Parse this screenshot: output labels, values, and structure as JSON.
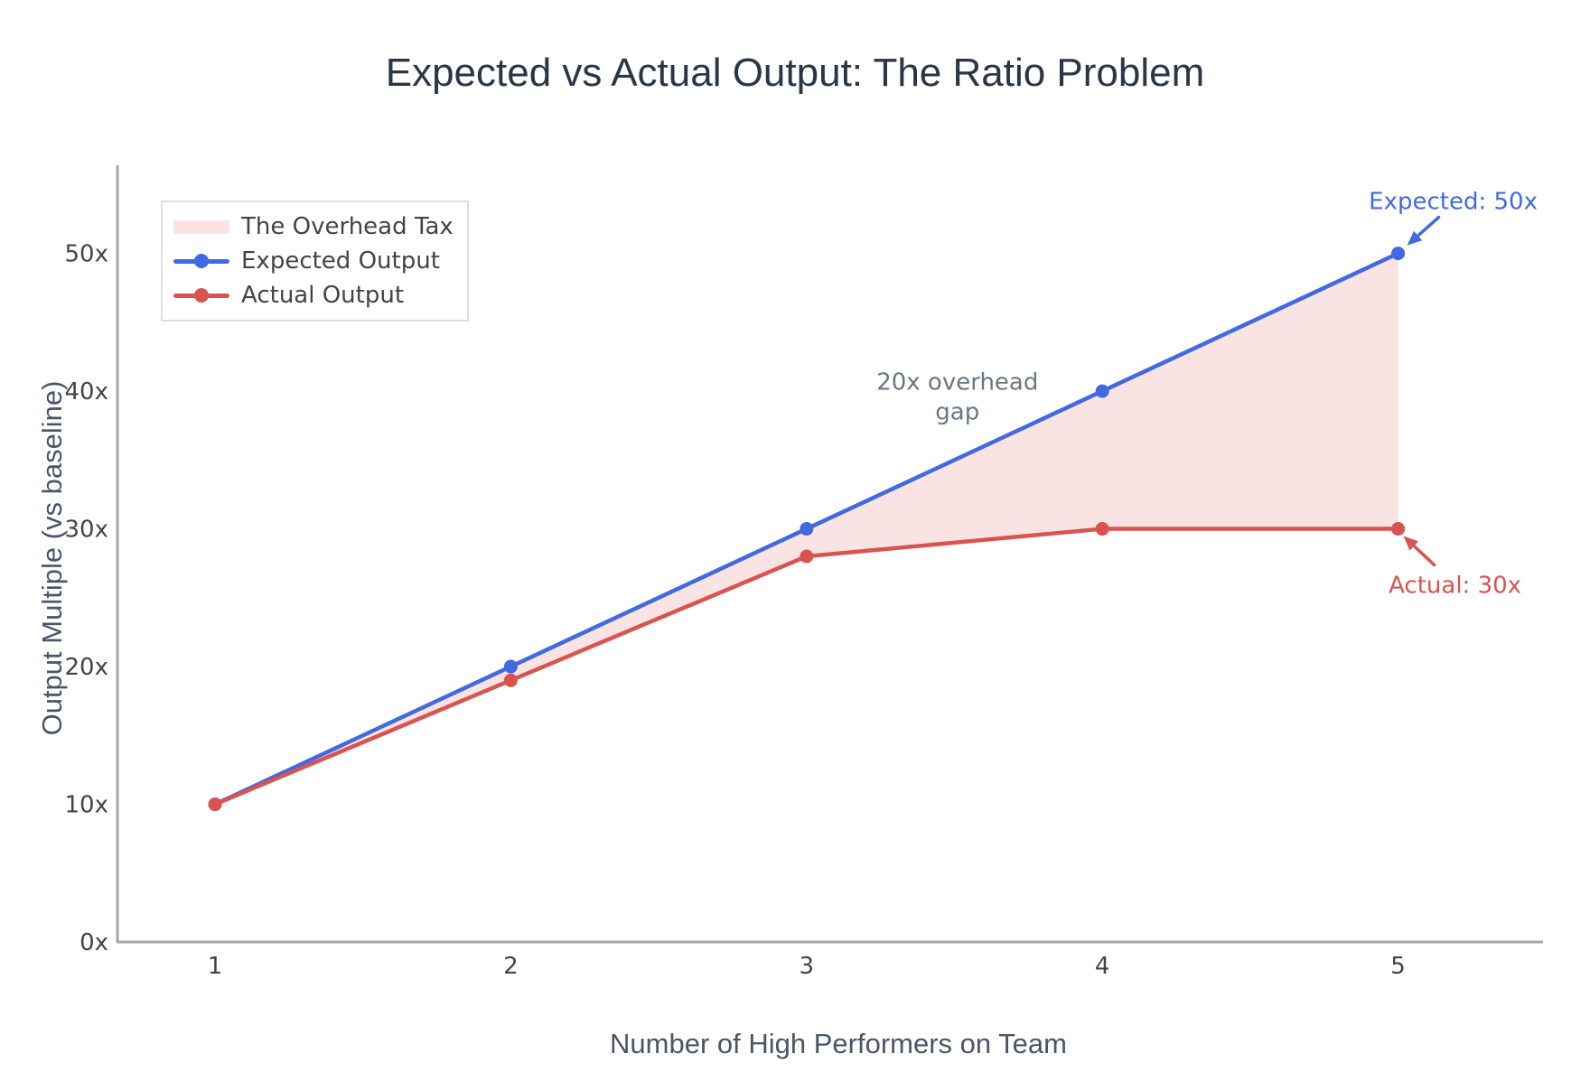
{
  "chart_data": {
    "type": "line",
    "title": "Expected vs Actual Output: The Ratio Problem",
    "xlabel": "Number of High Performers on Team",
    "ylabel": "Output Multiple (vs baseline)",
    "x": [
      1,
      2,
      3,
      4,
      5
    ],
    "series": [
      {
        "name": "Expected Output",
        "color": "#4169e1",
        "values": [
          10,
          20,
          30,
          40,
          50
        ]
      },
      {
        "name": "Actual Output",
        "color": "#d9534f",
        "values": [
          10,
          19,
          28,
          30,
          30
        ]
      }
    ],
    "fill_between": {
      "name": "The Overhead Tax",
      "color": "#f9e4e3",
      "between": [
        "Expected Output",
        "Actual Output"
      ]
    },
    "xticks": {
      "values": [
        1,
        2,
        3,
        4,
        5
      ],
      "labels": [
        "1",
        "2",
        "3",
        "4",
        "5"
      ]
    },
    "yticks": {
      "values": [
        0,
        10,
        20,
        30,
        40,
        50
      ],
      "labels": [
        "0x",
        "10x",
        "20x",
        "30x",
        "40x",
        "50x"
      ]
    },
    "xlim": [
      0.67,
      5.49
    ],
    "ylim": [
      0,
      56.4
    ],
    "grid": false,
    "legend_position": "top-left",
    "annotations": [
      {
        "text": "Expected: 50x",
        "color": "#4169e1",
        "target": {
          "x": 5,
          "y": 50
        },
        "placement": "above-right",
        "arrow": true
      },
      {
        "text": "Actual: 30x",
        "color": "#d9534f",
        "target": {
          "x": 5,
          "y": 30
        },
        "placement": "below-right",
        "arrow": true
      },
      {
        "text": "20x overhead\ngap",
        "color": "#6b7685",
        "target": {
          "x": 3.51,
          "y": 39.7
        },
        "placement": "center",
        "arrow": false
      }
    ],
    "style_colors": {
      "axis_line": "#a2a8b0",
      "tick_label": "#444444",
      "axis_title": "#4a5568",
      "title": "#2a3647"
    }
  }
}
